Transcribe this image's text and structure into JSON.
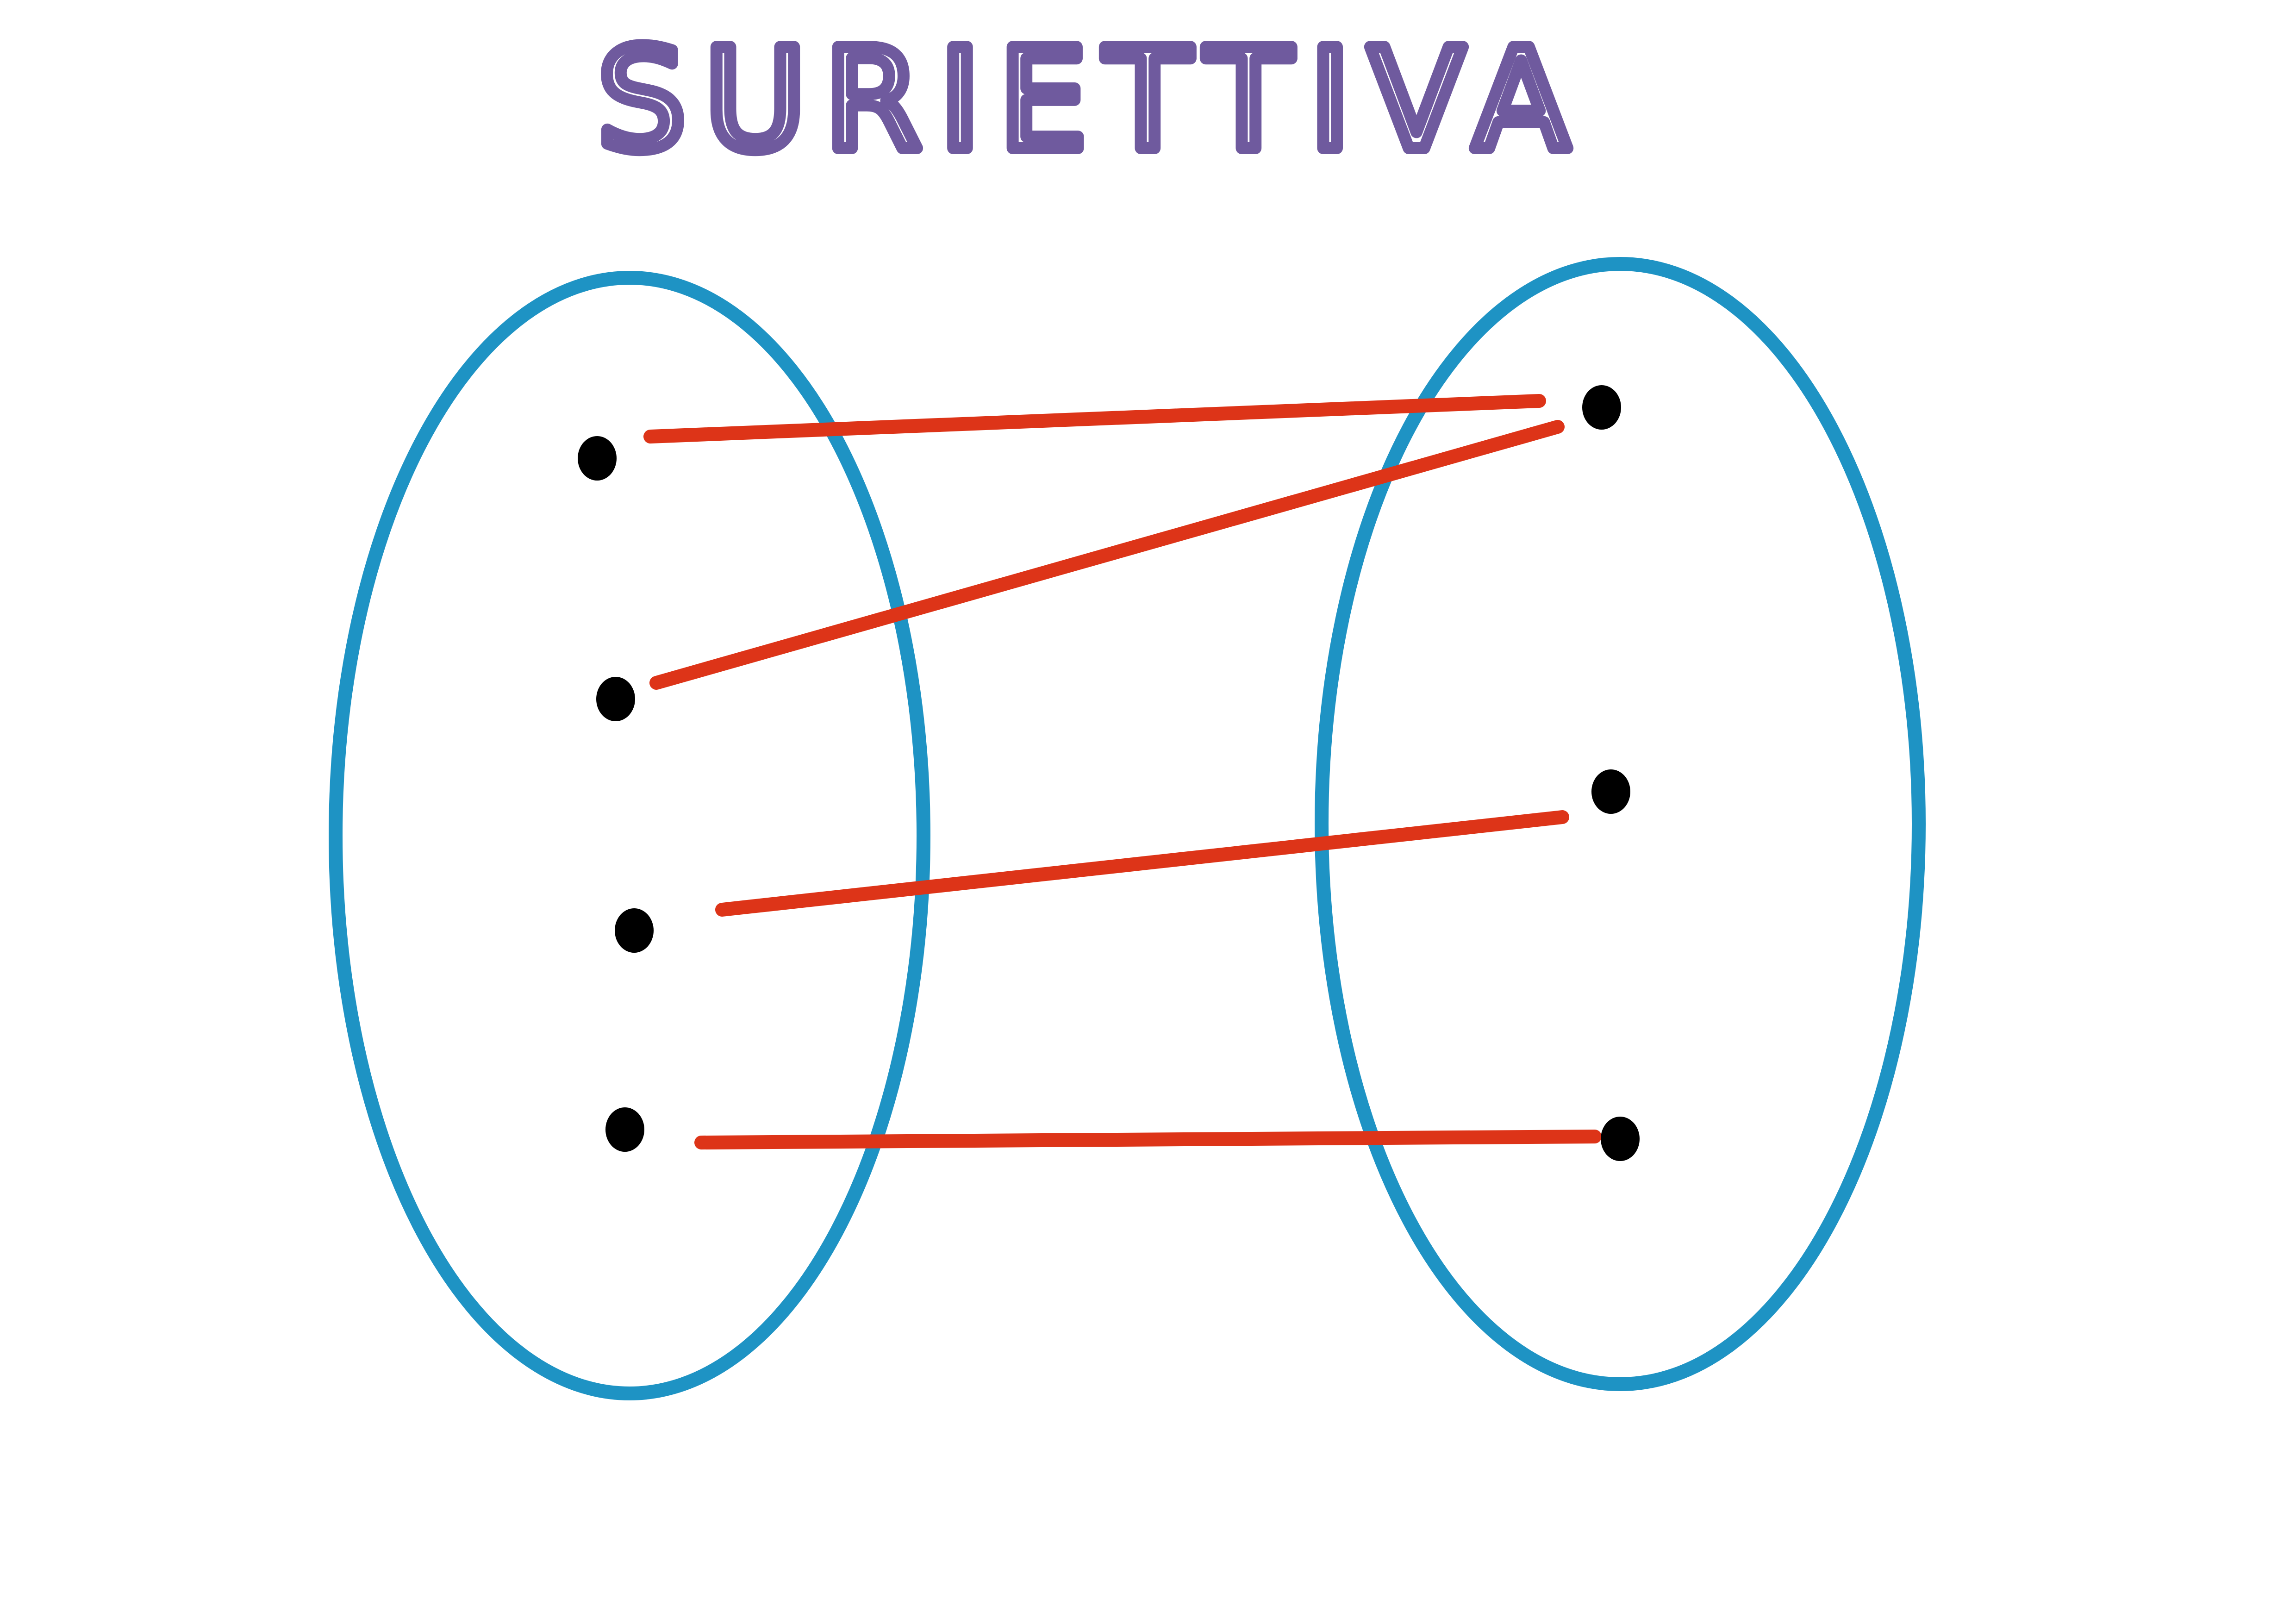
{
  "title": {
    "text": "SURIETTIVA",
    "color": "#6f5a9e"
  },
  "colors": {
    "set_outline": "#1e93c4",
    "arrow": "#dd3418",
    "point": "#000000",
    "background": "#ffffff"
  },
  "domain_set": {
    "point_count": 4
  },
  "codomain_set": {
    "point_count": 3
  },
  "mapping": [
    {
      "from": 1,
      "to": 1
    },
    {
      "from": 2,
      "to": 1
    },
    {
      "from": 3,
      "to": 2
    },
    {
      "from": 4,
      "to": 3
    }
  ]
}
